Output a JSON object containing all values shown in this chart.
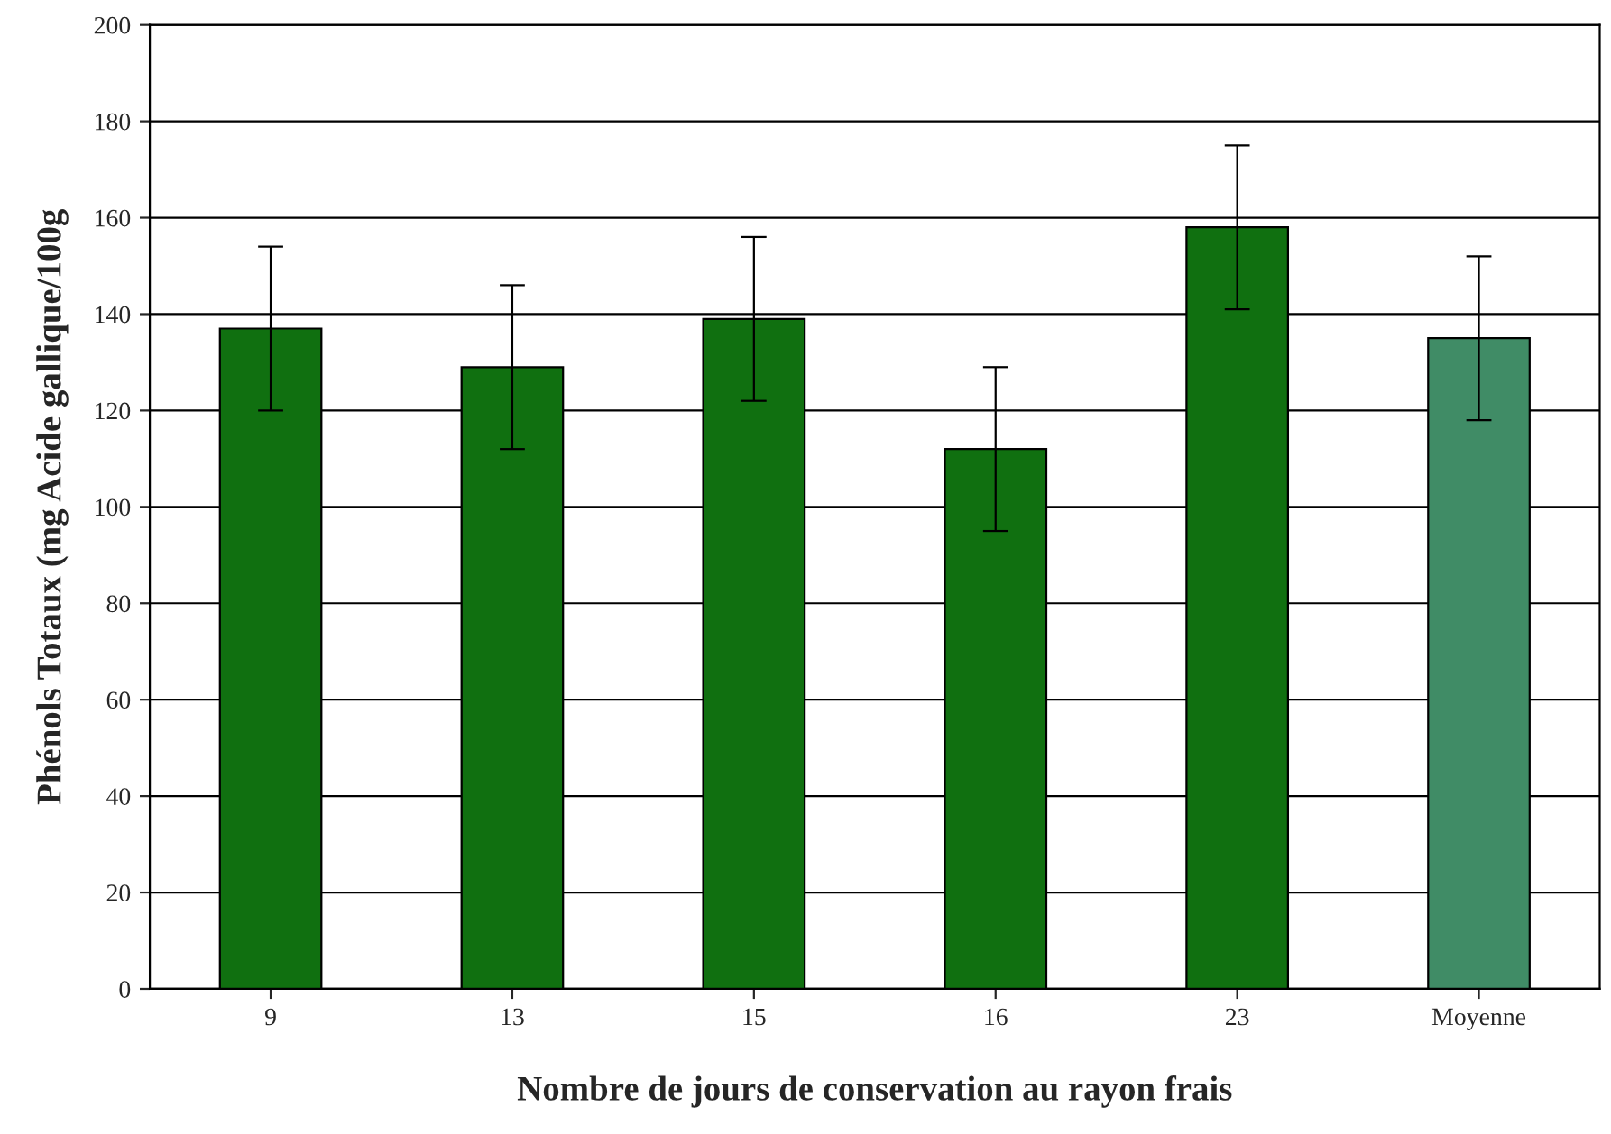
{
  "chart_data": {
    "type": "bar",
    "xlabel": "Nombre de jours de conservation au rayon frais",
    "ylabel": "Phénols Totaux (mg Acide gallique/100g",
    "categories": [
      "9",
      "13",
      "15",
      "16",
      "23",
      "Moyenne"
    ],
    "values": [
      137,
      129,
      139,
      112,
      158,
      135
    ],
    "colors": [
      "#008000",
      "#008000",
      "#008000",
      "#008000",
      "#008000",
      "#339966"
    ],
    "errors": [
      17,
      17,
      17,
      17,
      17,
      17
    ],
    "ylim": [
      0,
      200
    ],
    "yticks": [
      0,
      20,
      40,
      60,
      80,
      100,
      120,
      140,
      160,
      180,
      200
    ],
    "grid": "y"
  }
}
